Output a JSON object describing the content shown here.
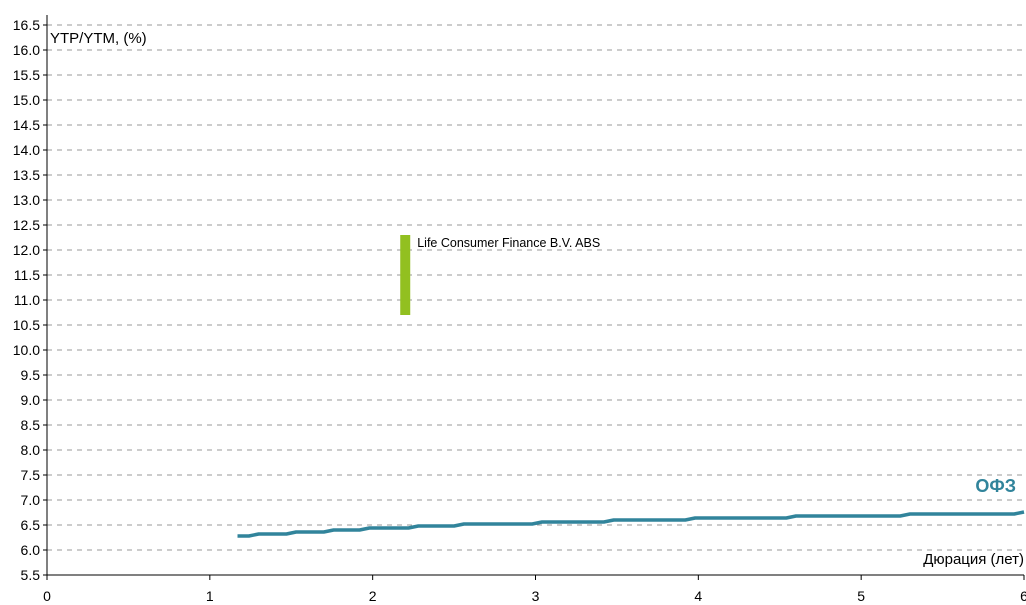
{
  "chart_data": {
    "type": "line",
    "ylabel": "YTP/YTM, (%)",
    "xlabel": "Дюрация (лет)",
    "xlim": [
      0,
      6
    ],
    "ylim": [
      5.5,
      16.5
    ],
    "x_ticks": [
      "0",
      "1",
      "2",
      "3",
      "4",
      "5",
      "6"
    ],
    "y_ticks": [
      "5.5",
      "6.0",
      "6.5",
      "7.0",
      "7.5",
      "8.0",
      "8.5",
      "9.0",
      "9.5",
      "10.0",
      "10.5",
      "11.0",
      "11.5",
      "12.0",
      "12.5",
      "13.0",
      "13.5",
      "14.0",
      "14.5",
      "15.0",
      "15.5",
      "16.0",
      "16.5"
    ],
    "grid": "horizontal dashed",
    "series": [
      {
        "name": "ОФЗ",
        "color": "#31849B",
        "x": [
          1.17,
          1.24,
          1.3,
          1.47,
          1.53,
          1.7,
          1.76,
          1.92,
          1.98,
          2.22,
          2.28,
          2.5,
          2.56,
          2.98,
          3.04,
          3.42,
          3.48,
          3.92,
          3.98,
          4.54,
          4.6,
          5.24,
          5.3,
          5.94,
          6.0
        ],
        "values": [
          6.28,
          6.28,
          6.32,
          6.32,
          6.36,
          6.36,
          6.4,
          6.4,
          6.44,
          6.44,
          6.48,
          6.48,
          6.52,
          6.52,
          6.56,
          6.56,
          6.6,
          6.6,
          6.64,
          6.64,
          6.68,
          6.68,
          6.72,
          6.72,
          6.76
        ]
      }
    ],
    "range_bars": [
      {
        "name": "Life Consumer Finance B.V. ABS",
        "color": "#92C020",
        "x": 2.2,
        "low": 10.7,
        "high": 12.3
      }
    ]
  }
}
